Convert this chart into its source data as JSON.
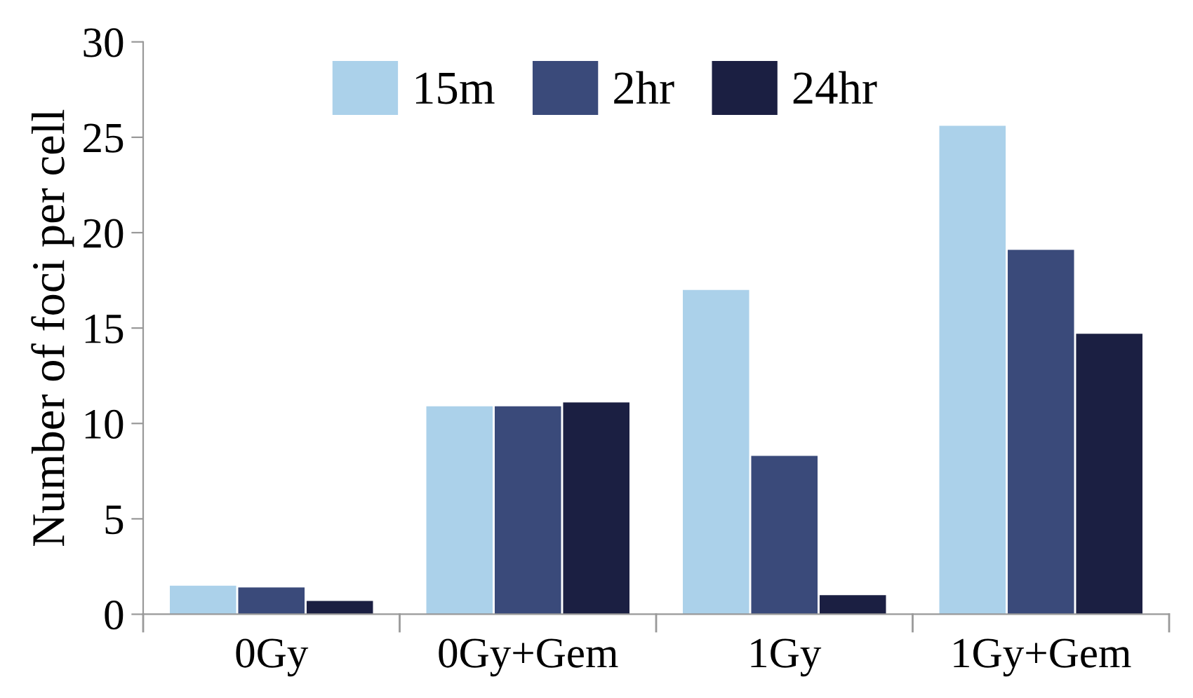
{
  "chart_data": {
    "type": "bar",
    "ylabel": "Number of foci per cell",
    "categories": [
      "0Gy",
      "0Gy+Gem",
      "1Gy",
      "1Gy+Gem"
    ],
    "series": [
      {
        "name": "15m",
        "color": "#abd1ea",
        "values": [
          1.5,
          10.9,
          17.0,
          25.6
        ]
      },
      {
        "name": "2hr",
        "color": "#3a4a7a",
        "values": [
          1.4,
          10.9,
          8.3,
          19.1
        ]
      },
      {
        "name": "24hr",
        "color": "#1b1f42",
        "values": [
          0.7,
          11.1,
          1.0,
          14.7
        ]
      }
    ],
    "ylim": [
      0,
      30
    ],
    "yticks": [
      0,
      5,
      10,
      15,
      20,
      25,
      30
    ],
    "grid": false,
    "legend": "top"
  }
}
